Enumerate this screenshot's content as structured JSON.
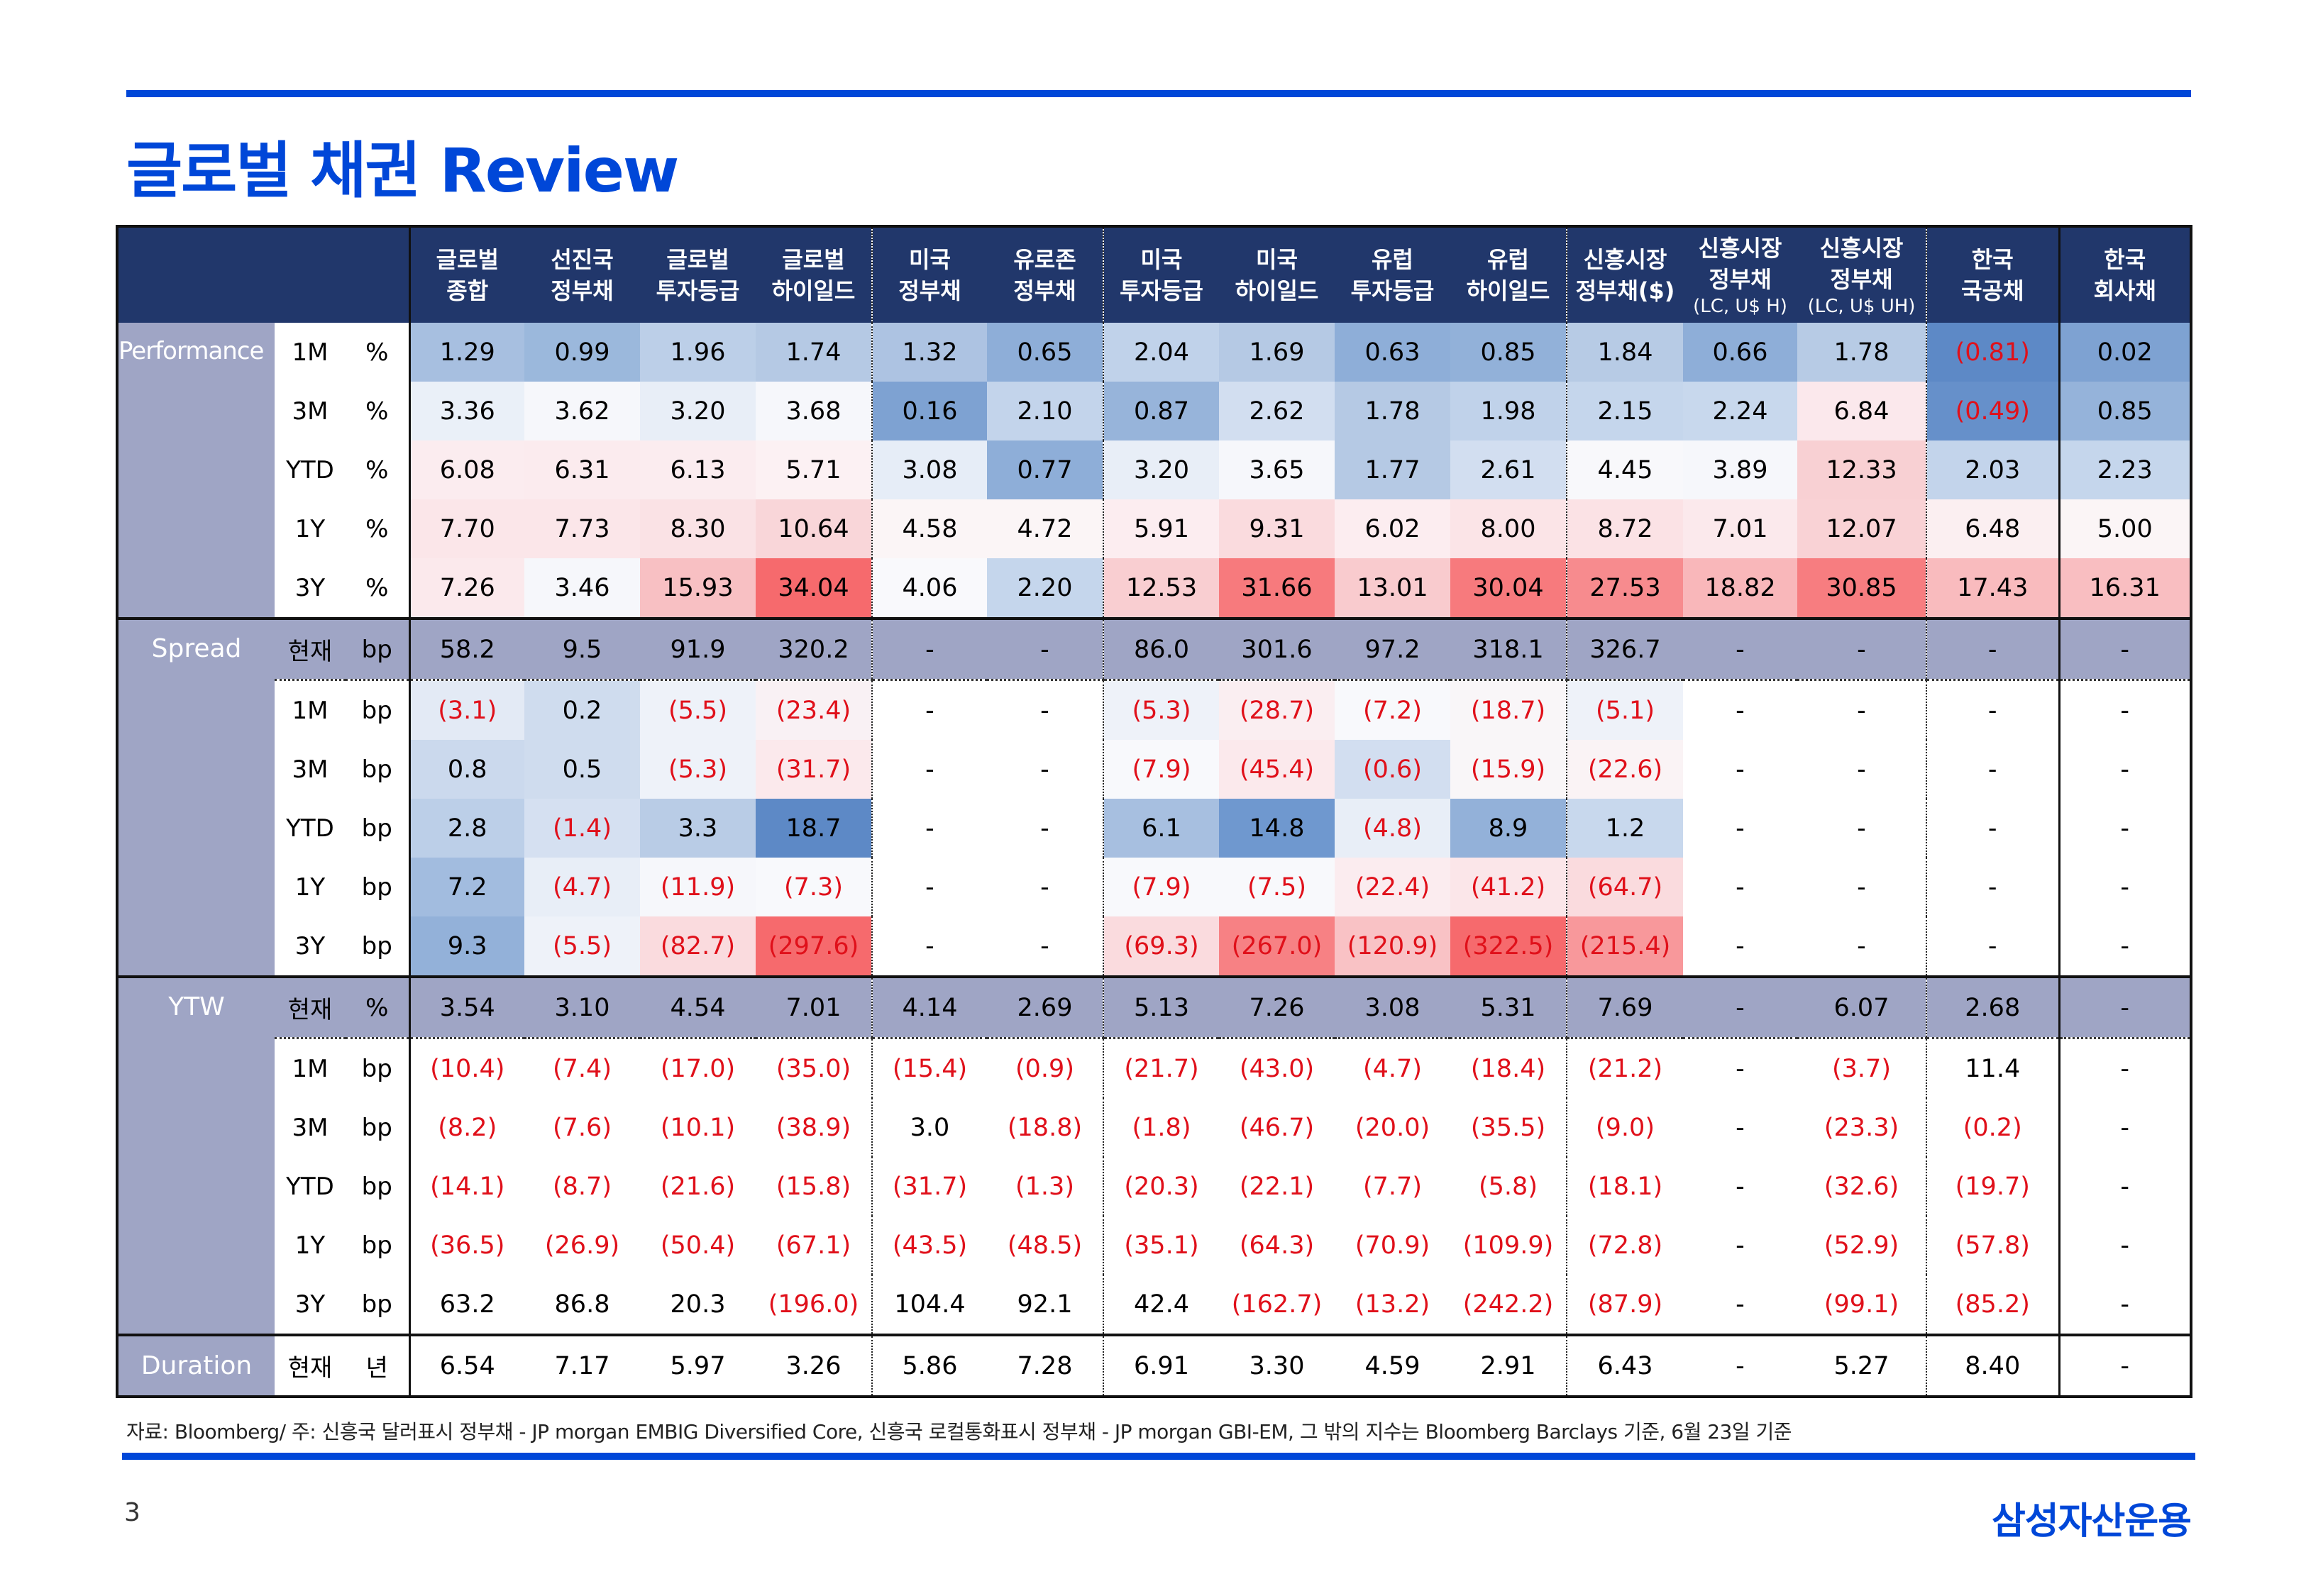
{
  "title": "글로벌 채권 Review",
  "columns": [
    {
      "l1": "글로벌",
      "l2": "종합",
      "sub": ""
    },
    {
      "l1": "선진국",
      "l2": "정부채",
      "sub": ""
    },
    {
      "l1": "글로벌",
      "l2": "투자등급",
      "sub": ""
    },
    {
      "l1": "글로벌",
      "l2": "하이일드",
      "sub": ""
    },
    {
      "l1": "미국",
      "l2": "정부채",
      "sub": ""
    },
    {
      "l1": "유로존",
      "l2": "정부채",
      "sub": ""
    },
    {
      "l1": "미국",
      "l2": "투자등급",
      "sub": ""
    },
    {
      "l1": "미국",
      "l2": "하이일드",
      "sub": ""
    },
    {
      "l1": "유럽",
      "l2": "투자등급",
      "sub": ""
    },
    {
      "l1": "유럽",
      "l2": "하이일드",
      "sub": ""
    },
    {
      "l1": "신흥시장",
      "l2": "정부채($)",
      "sub": ""
    },
    {
      "l1": "신흥시장",
      "l2": "정부채",
      "sub": "(LC, U$ H)"
    },
    {
      "l1": "신흥시장",
      "l2": "정부채",
      "sub": "(LC, U$ UH)"
    },
    {
      "l1": "한국",
      "l2": "국공채",
      "sub": ""
    },
    {
      "l1": "한국",
      "l2": "회사채",
      "sub": ""
    }
  ],
  "sections": [
    {
      "name": "Performance",
      "rows": [
        {
          "period": "1M",
          "unit": "%",
          "values": [
            "1.29",
            "0.99",
            "1.96",
            "1.74",
            "1.32",
            "0.65",
            "2.04",
            "1.69",
            "0.63",
            "0.85",
            "1.84",
            "0.66",
            "1.78",
            "(0.81)",
            "0.02"
          ]
        },
        {
          "period": "3M",
          "unit": "%",
          "values": [
            "3.36",
            "3.62",
            "3.20",
            "3.68",
            "0.16",
            "2.10",
            "0.87",
            "2.62",
            "1.78",
            "1.98",
            "2.15",
            "2.24",
            "6.84",
            "(0.49)",
            "0.85"
          ]
        },
        {
          "period": "YTD",
          "unit": "%",
          "values": [
            "6.08",
            "6.31",
            "6.13",
            "5.71",
            "3.08",
            "0.77",
            "3.20",
            "3.65",
            "1.77",
            "2.61",
            "4.45",
            "3.89",
            "12.33",
            "2.03",
            "2.23"
          ]
        },
        {
          "period": "1Y",
          "unit": "%",
          "values": [
            "7.70",
            "7.73",
            "8.30",
            "10.64",
            "4.58",
            "4.72",
            "5.91",
            "9.31",
            "6.02",
            "8.00",
            "8.72",
            "7.01",
            "12.07",
            "6.48",
            "5.00"
          ]
        },
        {
          "period": "3Y",
          "unit": "%",
          "values": [
            "7.26",
            "3.46",
            "15.93",
            "34.04",
            "4.06",
            "2.20",
            "12.53",
            "31.66",
            "13.01",
            "30.04",
            "27.53",
            "18.82",
            "30.85",
            "17.43",
            "16.31"
          ]
        }
      ]
    },
    {
      "name": "Spread",
      "rows": [
        {
          "period": "현재",
          "unit": "bp",
          "values": [
            "58.2",
            "9.5",
            "91.9",
            "320.2",
            "-",
            "-",
            "86.0",
            "301.6",
            "97.2",
            "318.1",
            "326.7",
            "-",
            "-",
            "-",
            "-"
          ]
        },
        {
          "period": "1M",
          "unit": "bp",
          "values": [
            "(3.1)",
            "0.2",
            "(5.5)",
            "(23.4)",
            "-",
            "-",
            "(5.3)",
            "(28.7)",
            "(7.2)",
            "(18.7)",
            "(5.1)",
            "-",
            "-",
            "-",
            "-"
          ]
        },
        {
          "period": "3M",
          "unit": "bp",
          "values": [
            "0.8",
            "0.5",
            "(5.3)",
            "(31.7)",
            "-",
            "-",
            "(7.9)",
            "(45.4)",
            "(0.6)",
            "(15.9)",
            "(22.6)",
            "-",
            "-",
            "-",
            "-"
          ]
        },
        {
          "period": "YTD",
          "unit": "bp",
          "values": [
            "2.8",
            "(1.4)",
            "3.3",
            "18.7",
            "-",
            "-",
            "6.1",
            "14.8",
            "(4.8)",
            "8.9",
            "1.2",
            "-",
            "-",
            "-",
            "-"
          ]
        },
        {
          "period": "1Y",
          "unit": "bp",
          "values": [
            "7.2",
            "(4.7)",
            "(11.9)",
            "(7.3)",
            "-",
            "-",
            "(7.9)",
            "(7.5)",
            "(22.4)",
            "(41.2)",
            "(64.7)",
            "-",
            "-",
            "-",
            "-"
          ]
        },
        {
          "period": "3Y",
          "unit": "bp",
          "values": [
            "9.3",
            "(5.5)",
            "(82.7)",
            "(297.6)",
            "-",
            "-",
            "(69.3)",
            "(267.0)",
            "(120.9)",
            "(322.5)",
            "(215.4)",
            "-",
            "-",
            "-",
            "-"
          ]
        }
      ]
    },
    {
      "name": "YTW",
      "rows": [
        {
          "period": "현재",
          "unit": "%",
          "values": [
            "3.54",
            "3.10",
            "4.54",
            "7.01",
            "4.14",
            "2.69",
            "5.13",
            "7.26",
            "3.08",
            "5.31",
            "7.69",
            "-",
            "6.07",
            "2.68",
            "-"
          ]
        },
        {
          "period": "1M",
          "unit": "bp",
          "values": [
            "(10.4)",
            "(7.4)",
            "(17.0)",
            "(35.0)",
            "(15.4)",
            "(0.9)",
            "(21.7)",
            "(43.0)",
            "(4.7)",
            "(18.4)",
            "(21.2)",
            "-",
            "(3.7)",
            "11.4",
            "-"
          ]
        },
        {
          "period": "3M",
          "unit": "bp",
          "values": [
            "(8.2)",
            "(7.6)",
            "(10.1)",
            "(38.9)",
            "3.0",
            "(18.8)",
            "(1.8)",
            "(46.7)",
            "(20.0)",
            "(35.5)",
            "(9.0)",
            "-",
            "(23.3)",
            "(0.2)",
            "-"
          ]
        },
        {
          "period": "YTD",
          "unit": "bp",
          "values": [
            "(14.1)",
            "(8.7)",
            "(21.6)",
            "(15.8)",
            "(31.7)",
            "(1.3)",
            "(20.3)",
            "(22.1)",
            "(7.7)",
            "(5.8)",
            "(18.1)",
            "-",
            "(32.6)",
            "(19.7)",
            "-"
          ]
        },
        {
          "period": "1Y",
          "unit": "bp",
          "values": [
            "(36.5)",
            "(26.9)",
            "(50.4)",
            "(67.1)",
            "(43.5)",
            "(48.5)",
            "(35.1)",
            "(64.3)",
            "(70.9)",
            "(109.9)",
            "(72.8)",
            "-",
            "(52.9)",
            "(57.8)",
            "-"
          ]
        },
        {
          "period": "3Y",
          "unit": "bp",
          "values": [
            "63.2",
            "86.8",
            "20.3",
            "(196.0)",
            "104.4",
            "92.1",
            "42.4",
            "(162.7)",
            "(13.2)",
            "(242.2)",
            "(87.9)",
            "-",
            "(99.1)",
            "(85.2)",
            "-"
          ]
        }
      ]
    },
    {
      "name": "Duration",
      "rows": [
        {
          "period": "현재",
          "unit": "년",
          "values": [
            "6.54",
            "7.17",
            "5.97",
            "3.26",
            "5.86",
            "7.28",
            "6.91",
            "3.30",
            "4.59",
            "2.91",
            "6.43",
            "-",
            "5.27",
            "8.40",
            "-"
          ]
        }
      ]
    }
  ],
  "heat_colors": {
    "Performance": [
      [
        "#a7bfe0",
        "#9bb8dc",
        "#bccfe8",
        "#b5c9e4",
        "#adc3e2",
        "#8eaed8",
        "#c0d2ea",
        "#b5c9e4",
        "#8eaed8",
        "#92b1d9",
        "#b7cbe5",
        "#8eaed8",
        "#b7cbe5",
        "#5d89c6",
        "#7ea2d2"
      ],
      [
        "#eaf0f8",
        "#f6f7fb",
        "#e8eef7",
        "#f6f7fb",
        "#7ea2d2",
        "#c3d4eb",
        "#97b4da",
        "#d2def0",
        "#b5c9e4",
        "#c0d2ea",
        "#c5d6ec",
        "#c8d8ed",
        "#fbe8ec",
        "#6690ca",
        "#95b3da"
      ],
      [
        "#fbecef",
        "#fbebee",
        "#fbecef",
        "#fcf1f3",
        "#e6edf7",
        "#8eaed8",
        "#e8eef7",
        "#f6f7fb",
        "#b5c9e4",
        "#d2def0",
        "#f8f8fb",
        "#f6f7fb",
        "#f8d0d3",
        "#c3d4eb",
        "#c5d6ec"
      ],
      [
        "#fbe6e9",
        "#fbe6e9",
        "#fae2e5",
        "#f9d6d9",
        "#fbf5f6",
        "#fbf5f6",
        "#fcedf0",
        "#fadbde",
        "#fcedf0",
        "#fbe4e7",
        "#fbe2e5",
        "#fbe9ec",
        "#f9d2d5",
        "#fbeff1",
        "#fbf5f6"
      ],
      [
        "#fbe9ec",
        "#f6f7fb",
        "#f8c0c3",
        "#f66a6d",
        "#f9f9fc",
        "#c5d6ec",
        "#f9ced1",
        "#f77a7d",
        "#f9cbce",
        "#f77a7d",
        "#f78b8e",
        "#f9b7ba",
        "#f77d80",
        "#f9bbbe",
        "#f9bec1"
      ]
    ],
    "Spread": [
      null,
      [
        "#e3eaf5",
        "#cfdcee",
        "#eef2f9",
        "#f9f1f4",
        "#ffffff",
        "#ffffff",
        "#eef2f9",
        "#faeef1",
        "#f8f9fc",
        "#f9f6f8",
        "#eef2f9",
        "#ffffff",
        "#ffffff",
        "#ffffff",
        "#ffffff"
      ],
      [
        "#cbd9ed",
        "#cfdcee",
        "#eef2f9",
        "#fbe9ec",
        "#ffffff",
        "#ffffff",
        "#f8f9fc",
        "#fbe9ec",
        "#d2def0",
        "#f9f6f8",
        "#faf3f5",
        "#ffffff",
        "#ffffff",
        "#ffffff",
        "#ffffff"
      ],
      [
        "#bccfe8",
        "#d5e0f1",
        "#b9cce6",
        "#5d89c6",
        "#ffffff",
        "#ffffff",
        "#a7bfe0",
        "#6f98cf",
        "#e8eef7",
        "#93b1d9",
        "#c8d8ed",
        "#ffffff",
        "#ffffff",
        "#ffffff",
        "#ffffff"
      ],
      [
        "#a2bcdf",
        "#e8eef7",
        "#f6f7fb",
        "#f8f9fc",
        "#ffffff",
        "#ffffff",
        "#f8f9fc",
        "#f8f9fc",
        "#fbecef",
        "#fbe6e9",
        "#fadbde",
        "#ffffff",
        "#ffffff",
        "#ffffff",
        "#ffffff"
      ],
      [
        "#93b1d9",
        "#eef2f9",
        "#fadbde",
        "#f66a6d",
        "#ffffff",
        "#ffffff",
        "#fadbde",
        "#f78184",
        "#f9c2c5",
        "#f66a6d",
        "#f8989b",
        "#ffffff",
        "#ffffff",
        "#ffffff",
        "#ffffff"
      ]
    ]
  },
  "footer": {
    "note": "자료: Bloomberg/ 주: 신흥국 달러표시 정부채 - JP morgan EMBIG Diversified Core, 신흥국 로컬통화표시 정부채 - JP morgan GBI-EM, 그 밖의 지수는 Bloomberg Barclays 기준, 6월 23일 기준",
    "page_number": "3",
    "company": "삼성자산운용"
  },
  "colors": {
    "brand_blue": "#0047d8",
    "header_navy": "#21376b",
    "section_band": "#9fa5c5",
    "negative_red": "#e0101a"
  }
}
